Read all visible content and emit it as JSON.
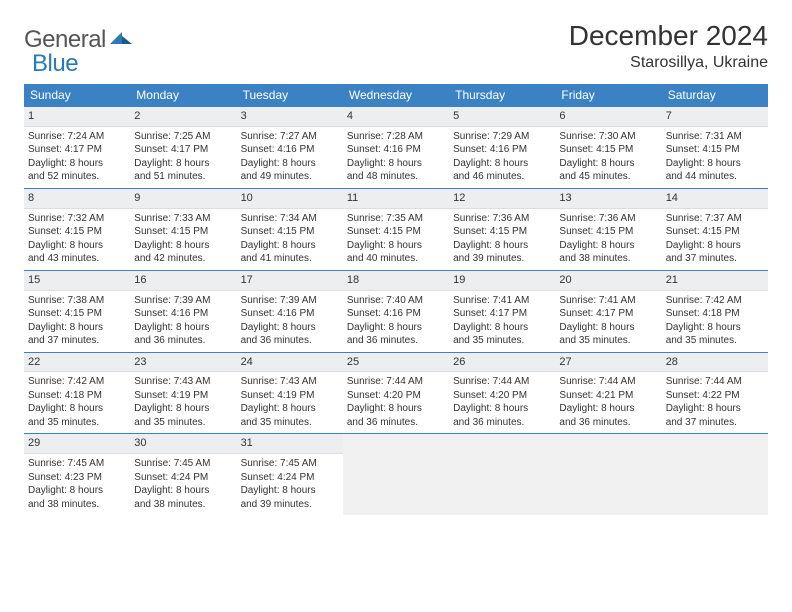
{
  "logo": {
    "general": "General",
    "blue": "Blue"
  },
  "title": "December 2024",
  "location": "Starosillya, Ukraine",
  "colors": {
    "header_bg": "#3b82c4",
    "header_text": "#ffffff",
    "daynum_bg": "#eceef0",
    "border": "#3b82c4",
    "text": "#333333",
    "logo_gray": "#555555",
    "logo_blue": "#2a7ab8",
    "empty_bg": "#f1f1f1"
  },
  "day_headers": [
    "Sunday",
    "Monday",
    "Tuesday",
    "Wednesday",
    "Thursday",
    "Friday",
    "Saturday"
  ],
  "weeks": [
    [
      {
        "n": "1",
        "sunrise": "Sunrise: 7:24 AM",
        "sunset": "Sunset: 4:17 PM",
        "day1": "Daylight: 8 hours",
        "day2": "and 52 minutes."
      },
      {
        "n": "2",
        "sunrise": "Sunrise: 7:25 AM",
        "sunset": "Sunset: 4:17 PM",
        "day1": "Daylight: 8 hours",
        "day2": "and 51 minutes."
      },
      {
        "n": "3",
        "sunrise": "Sunrise: 7:27 AM",
        "sunset": "Sunset: 4:16 PM",
        "day1": "Daylight: 8 hours",
        "day2": "and 49 minutes."
      },
      {
        "n": "4",
        "sunrise": "Sunrise: 7:28 AM",
        "sunset": "Sunset: 4:16 PM",
        "day1": "Daylight: 8 hours",
        "day2": "and 48 minutes."
      },
      {
        "n": "5",
        "sunrise": "Sunrise: 7:29 AM",
        "sunset": "Sunset: 4:16 PM",
        "day1": "Daylight: 8 hours",
        "day2": "and 46 minutes."
      },
      {
        "n": "6",
        "sunrise": "Sunrise: 7:30 AM",
        "sunset": "Sunset: 4:15 PM",
        "day1": "Daylight: 8 hours",
        "day2": "and 45 minutes."
      },
      {
        "n": "7",
        "sunrise": "Sunrise: 7:31 AM",
        "sunset": "Sunset: 4:15 PM",
        "day1": "Daylight: 8 hours",
        "day2": "and 44 minutes."
      }
    ],
    [
      {
        "n": "8",
        "sunrise": "Sunrise: 7:32 AM",
        "sunset": "Sunset: 4:15 PM",
        "day1": "Daylight: 8 hours",
        "day2": "and 43 minutes."
      },
      {
        "n": "9",
        "sunrise": "Sunrise: 7:33 AM",
        "sunset": "Sunset: 4:15 PM",
        "day1": "Daylight: 8 hours",
        "day2": "and 42 minutes."
      },
      {
        "n": "10",
        "sunrise": "Sunrise: 7:34 AM",
        "sunset": "Sunset: 4:15 PM",
        "day1": "Daylight: 8 hours",
        "day2": "and 41 minutes."
      },
      {
        "n": "11",
        "sunrise": "Sunrise: 7:35 AM",
        "sunset": "Sunset: 4:15 PM",
        "day1": "Daylight: 8 hours",
        "day2": "and 40 minutes."
      },
      {
        "n": "12",
        "sunrise": "Sunrise: 7:36 AM",
        "sunset": "Sunset: 4:15 PM",
        "day1": "Daylight: 8 hours",
        "day2": "and 39 minutes."
      },
      {
        "n": "13",
        "sunrise": "Sunrise: 7:36 AM",
        "sunset": "Sunset: 4:15 PM",
        "day1": "Daylight: 8 hours",
        "day2": "and 38 minutes."
      },
      {
        "n": "14",
        "sunrise": "Sunrise: 7:37 AM",
        "sunset": "Sunset: 4:15 PM",
        "day1": "Daylight: 8 hours",
        "day2": "and 37 minutes."
      }
    ],
    [
      {
        "n": "15",
        "sunrise": "Sunrise: 7:38 AM",
        "sunset": "Sunset: 4:15 PM",
        "day1": "Daylight: 8 hours",
        "day2": "and 37 minutes."
      },
      {
        "n": "16",
        "sunrise": "Sunrise: 7:39 AM",
        "sunset": "Sunset: 4:16 PM",
        "day1": "Daylight: 8 hours",
        "day2": "and 36 minutes."
      },
      {
        "n": "17",
        "sunrise": "Sunrise: 7:39 AM",
        "sunset": "Sunset: 4:16 PM",
        "day1": "Daylight: 8 hours",
        "day2": "and 36 minutes."
      },
      {
        "n": "18",
        "sunrise": "Sunrise: 7:40 AM",
        "sunset": "Sunset: 4:16 PM",
        "day1": "Daylight: 8 hours",
        "day2": "and 36 minutes."
      },
      {
        "n": "19",
        "sunrise": "Sunrise: 7:41 AM",
        "sunset": "Sunset: 4:17 PM",
        "day1": "Daylight: 8 hours",
        "day2": "and 35 minutes."
      },
      {
        "n": "20",
        "sunrise": "Sunrise: 7:41 AM",
        "sunset": "Sunset: 4:17 PM",
        "day1": "Daylight: 8 hours",
        "day2": "and 35 minutes."
      },
      {
        "n": "21",
        "sunrise": "Sunrise: 7:42 AM",
        "sunset": "Sunset: 4:18 PM",
        "day1": "Daylight: 8 hours",
        "day2": "and 35 minutes."
      }
    ],
    [
      {
        "n": "22",
        "sunrise": "Sunrise: 7:42 AM",
        "sunset": "Sunset: 4:18 PM",
        "day1": "Daylight: 8 hours",
        "day2": "and 35 minutes."
      },
      {
        "n": "23",
        "sunrise": "Sunrise: 7:43 AM",
        "sunset": "Sunset: 4:19 PM",
        "day1": "Daylight: 8 hours",
        "day2": "and 35 minutes."
      },
      {
        "n": "24",
        "sunrise": "Sunrise: 7:43 AM",
        "sunset": "Sunset: 4:19 PM",
        "day1": "Daylight: 8 hours",
        "day2": "and 35 minutes."
      },
      {
        "n": "25",
        "sunrise": "Sunrise: 7:44 AM",
        "sunset": "Sunset: 4:20 PM",
        "day1": "Daylight: 8 hours",
        "day2": "and 36 minutes."
      },
      {
        "n": "26",
        "sunrise": "Sunrise: 7:44 AM",
        "sunset": "Sunset: 4:20 PM",
        "day1": "Daylight: 8 hours",
        "day2": "and 36 minutes."
      },
      {
        "n": "27",
        "sunrise": "Sunrise: 7:44 AM",
        "sunset": "Sunset: 4:21 PM",
        "day1": "Daylight: 8 hours",
        "day2": "and 36 minutes."
      },
      {
        "n": "28",
        "sunrise": "Sunrise: 7:44 AM",
        "sunset": "Sunset: 4:22 PM",
        "day1": "Daylight: 8 hours",
        "day2": "and 37 minutes."
      }
    ],
    [
      {
        "n": "29",
        "sunrise": "Sunrise: 7:45 AM",
        "sunset": "Sunset: 4:23 PM",
        "day1": "Daylight: 8 hours",
        "day2": "and 38 minutes."
      },
      {
        "n": "30",
        "sunrise": "Sunrise: 7:45 AM",
        "sunset": "Sunset: 4:24 PM",
        "day1": "Daylight: 8 hours",
        "day2": "and 38 minutes."
      },
      {
        "n": "31",
        "sunrise": "Sunrise: 7:45 AM",
        "sunset": "Sunset: 4:24 PM",
        "day1": "Daylight: 8 hours",
        "day2": "and 39 minutes."
      },
      null,
      null,
      null,
      null
    ]
  ]
}
